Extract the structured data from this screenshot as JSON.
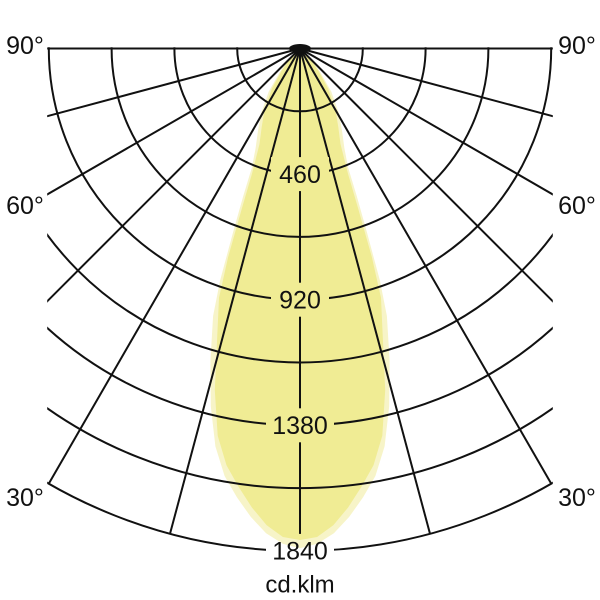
{
  "chart_data": {
    "type": "polar-intensity-distribution",
    "unit_label": "cd.klm",
    "colors": {
      "background": "#ffffff",
      "grid": "#111111",
      "text": "#111111",
      "beam_outer": "#f7f4c8",
      "beam_inner": "#f0ec94"
    },
    "grid": {
      "angle_step_deg": 15,
      "angle_range_deg": [
        -90,
        90
      ],
      "ring_values": [
        230,
        460,
        690,
        920,
        1150,
        1380,
        1610,
        1840
      ],
      "labeled_ring_values": [
        460,
        920,
        1380,
        1840
      ],
      "angle_tick_labels": [
        "90°",
        "60°",
        "30°"
      ]
    },
    "series": [
      {
        "name": "beam-outer-curve",
        "color_key": "beam_outer",
        "points": [
          [
            0,
            1830
          ],
          [
            2,
            1815
          ],
          [
            4,
            1780
          ],
          [
            6,
            1725
          ],
          [
            8,
            1660
          ],
          [
            10,
            1590
          ],
          [
            12,
            1490
          ],
          [
            14,
            1350
          ],
          [
            16,
            1190
          ],
          [
            18,
            1030
          ],
          [
            19,
            900
          ],
          [
            20,
            720
          ],
          [
            21,
            580
          ],
          [
            22,
            470
          ],
          [
            24,
            400
          ],
          [
            27,
            340
          ],
          [
            31,
            275
          ],
          [
            36,
            195
          ],
          [
            41,
            110
          ],
          [
            46,
            50
          ],
          [
            51,
            26
          ],
          [
            60,
            17
          ],
          [
            75,
            12
          ],
          [
            90,
            12
          ]
        ]
      },
      {
        "name": "beam-inner-curve",
        "color_key": "beam_inner",
        "points": [
          [
            0,
            1800
          ],
          [
            2,
            1790
          ],
          [
            4,
            1750
          ],
          [
            6,
            1690
          ],
          [
            8,
            1620
          ],
          [
            10,
            1550
          ],
          [
            12,
            1450
          ],
          [
            14,
            1290
          ],
          [
            16,
            1100
          ],
          [
            18,
            960
          ],
          [
            19,
            810
          ],
          [
            20,
            620
          ],
          [
            21,
            490
          ],
          [
            23,
            380
          ],
          [
            26,
            320
          ],
          [
            30,
            260
          ],
          [
            35,
            180
          ],
          [
            40,
            100
          ],
          [
            45,
            44
          ],
          [
            50,
            22
          ],
          [
            60,
            15
          ],
          [
            75,
            11
          ],
          [
            90,
            11
          ]
        ]
      }
    ],
    "peak_intensity_cd_klm": 1800,
    "legend": "none",
    "title": ""
  }
}
